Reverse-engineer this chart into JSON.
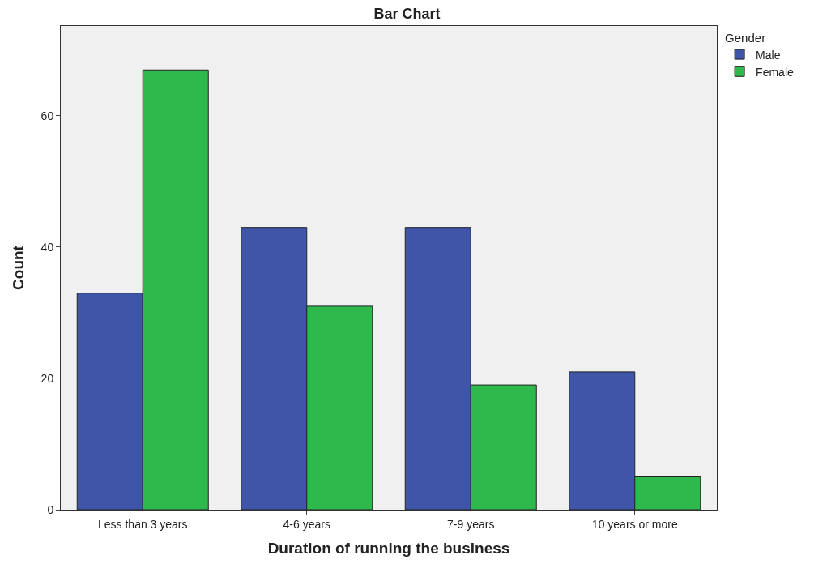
{
  "chart_data": {
    "type": "bar",
    "title": "Bar Chart",
    "xlabel": "Duration of running the business",
    "ylabel": "Count",
    "legend_title": "Gender",
    "categories": [
      "Less than 3 years",
      "4-6 years",
      "7-9 years",
      "10 years or more"
    ],
    "series": [
      {
        "name": "Male",
        "color": "#3e55a8",
        "values": [
          33,
          43,
          43,
          21
        ]
      },
      {
        "name": "Female",
        "color": "#2fb84c",
        "values": [
          67,
          31,
          19,
          5
        ]
      }
    ],
    "ylim": [
      0,
      73.7
    ],
    "yticks": [
      0,
      20,
      40,
      60
    ],
    "grid": false,
    "legend": "top right"
  }
}
